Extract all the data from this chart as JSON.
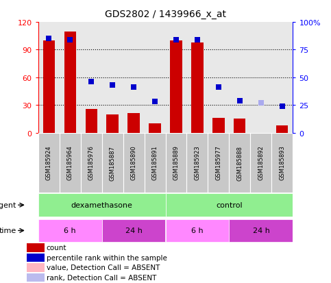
{
  "title": "GDS2802 / 1439966_x_at",
  "samples": [
    "GSM185924",
    "GSM185964",
    "GSM185976",
    "GSM185887",
    "GSM185890",
    "GSM185891",
    "GSM185889",
    "GSM185923",
    "GSM185977",
    "GSM185888",
    "GSM185892",
    "GSM185893"
  ],
  "bar_values": [
    100,
    110,
    26,
    20,
    21,
    10,
    100,
    98,
    16,
    15,
    0,
    8
  ],
  "bar_colors": [
    "#cc0000",
    "#cc0000",
    "#cc0000",
    "#cc0000",
    "#cc0000",
    "#cc0000",
    "#cc0000",
    "#cc0000",
    "#cc0000",
    "#cc0000",
    "#ffb6c1",
    "#cc0000"
  ],
  "dot_values": [
    85,
    84,
    46,
    43,
    41,
    28,
    84,
    84,
    41,
    29,
    27,
    24
  ],
  "dot_colors": [
    "#0000cc",
    "#0000cc",
    "#0000cc",
    "#0000cc",
    "#0000cc",
    "#0000cc",
    "#0000cc",
    "#0000cc",
    "#0000cc",
    "#0000cc",
    "#aaaaee",
    "#0000cc"
  ],
  "ylim_left": [
    0,
    120
  ],
  "ylim_right": [
    0,
    100
  ],
  "yticks_left": [
    0,
    30,
    60,
    90,
    120
  ],
  "yticks_right": [
    0,
    25,
    50,
    75,
    100
  ],
  "ytick_labels_left": [
    "0",
    "30",
    "60",
    "90",
    "120"
  ],
  "ytick_labels_right": [
    "0",
    "25",
    "50",
    "75",
    "100%"
  ],
  "background_color": "#ffffff",
  "plot_bg": "#e8e8e8",
  "bar_width": 0.55,
  "dot_size": 35,
  "n_samples": 12,
  "agent_row_color": "#90ee90",
  "time_colors": [
    "#ff88ff",
    "#cc44cc",
    "#ff88ff",
    "#cc44cc"
  ],
  "time_labels": [
    "6 h",
    "24 h",
    "6 h",
    "24 h"
  ],
  "legend_items": [
    {
      "label": "count",
      "color": "#cc0000"
    },
    {
      "label": "percentile rank within the sample",
      "color": "#0000cc"
    },
    {
      "label": "value, Detection Call = ABSENT",
      "color": "#ffb6c1"
    },
    {
      "label": "rank, Detection Call = ABSENT",
      "color": "#bbbbee"
    }
  ]
}
